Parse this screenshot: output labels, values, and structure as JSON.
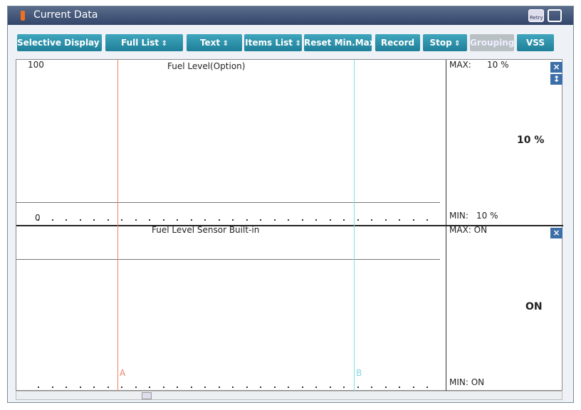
{
  "window": {
    "title": "Current Data",
    "retry_label": "Retry"
  },
  "toolbar": {
    "buttons": [
      {
        "label": "Selective Display",
        "dropdown": true
      },
      {
        "label": "Full List",
        "dropdown": true
      },
      {
        "label": "Text",
        "dropdown": true
      },
      {
        "label": "Items List",
        "dropdown": true
      },
      {
        "label": "Reset Min.Max",
        "dropdown": false
      },
      {
        "label": "Record",
        "dropdown": false
      },
      {
        "label": "Stop",
        "dropdown": true
      },
      {
        "label": "Grouping",
        "dropdown": false,
        "disabled": true
      },
      {
        "label": "VSS",
        "dropdown": false
      }
    ]
  },
  "graphs": [
    {
      "title": "Fuel Level(Option)",
      "axis_max": "100",
      "axis_min": "0",
      "max_label": "MAX:",
      "max_value": "10 %",
      "current": "10 %",
      "min_label": "MIN:",
      "min_value": "10 %"
    },
    {
      "title": "Fuel Level Sensor Built-in",
      "max": "MAX: ON",
      "current": "ON",
      "min": "MIN: ON"
    }
  ],
  "cursors": [
    "A",
    "B"
  ]
}
